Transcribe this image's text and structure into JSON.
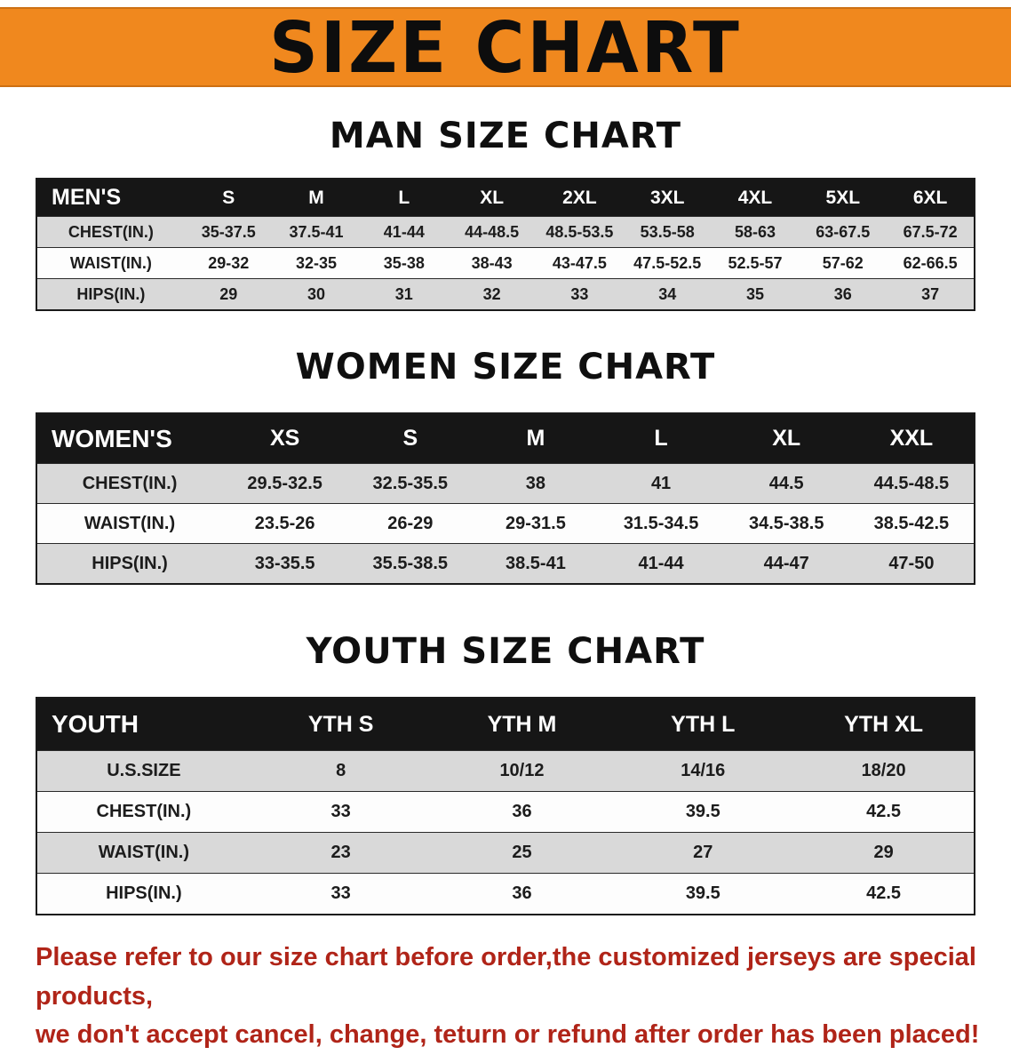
{
  "banner": {
    "title": "SIZE CHART"
  },
  "colors": {
    "banner_bg": "#f0881e",
    "header_bg": "#161616",
    "row_alt": "#d9d9d9",
    "note_red": "#b02418"
  },
  "sections": [
    {
      "heading": "MAN SIZE CHART",
      "table": {
        "name": "mens",
        "header": [
          "MEN'S",
          "S",
          "M",
          "L",
          "XL",
          "2XL",
          "3XL",
          "4XL",
          "5XL",
          "6XL"
        ],
        "rows": [
          [
            "CHEST(IN.)",
            "35-37.5",
            "37.5-41",
            "41-44",
            "44-48.5",
            "48.5-53.5",
            "53.5-58",
            "58-63",
            "63-67.5",
            "67.5-72"
          ],
          [
            "WAIST(IN.)",
            "29-32",
            "32-35",
            "35-38",
            "38-43",
            "43-47.5",
            "47.5-52.5",
            "52.5-57",
            "57-62",
            "62-66.5"
          ],
          [
            "HIPS(IN.)",
            "29",
            "30",
            "31",
            "32",
            "33",
            "34",
            "35",
            "36",
            "37"
          ]
        ]
      }
    },
    {
      "heading": "WOMEN SIZE CHART",
      "table": {
        "name": "womens",
        "header": [
          "WOMEN'S",
          "XS",
          "S",
          "M",
          "L",
          "XL",
          "XXL"
        ],
        "rows": [
          [
            "CHEST(IN.)",
            "29.5-32.5",
            "32.5-35.5",
            "38",
            "41",
            "44.5",
            "44.5-48.5"
          ],
          [
            "WAIST(IN.)",
            "23.5-26",
            "26-29",
            "29-31.5",
            "31.5-34.5",
            "34.5-38.5",
            "38.5-42.5"
          ],
          [
            "HIPS(IN.)",
            "33-35.5",
            "35.5-38.5",
            "38.5-41",
            "41-44",
            "44-47",
            "47-50"
          ]
        ]
      }
    },
    {
      "heading": "YOUTH SIZE CHART",
      "table": {
        "name": "youth",
        "header": [
          "YOUTH",
          "YTH S",
          "YTH M",
          "YTH L",
          "YTH XL"
        ],
        "rows": [
          [
            "U.S.SIZE",
            "8",
            "10/12",
            "14/16",
            "18/20"
          ],
          [
            "CHEST(IN.)",
            "33",
            "36",
            "39.5",
            "42.5"
          ],
          [
            "WAIST(IN.)",
            "23",
            "25",
            "27",
            "29"
          ],
          [
            "HIPS(IN.)",
            "33",
            "36",
            "39.5",
            "42.5"
          ]
        ]
      }
    }
  ],
  "note": {
    "line1": "Please refer to our size chart before order,the customized jerseys are special products,",
    "line2": "we don't accept cancel, change, teturn or refund after order has been placed!"
  }
}
